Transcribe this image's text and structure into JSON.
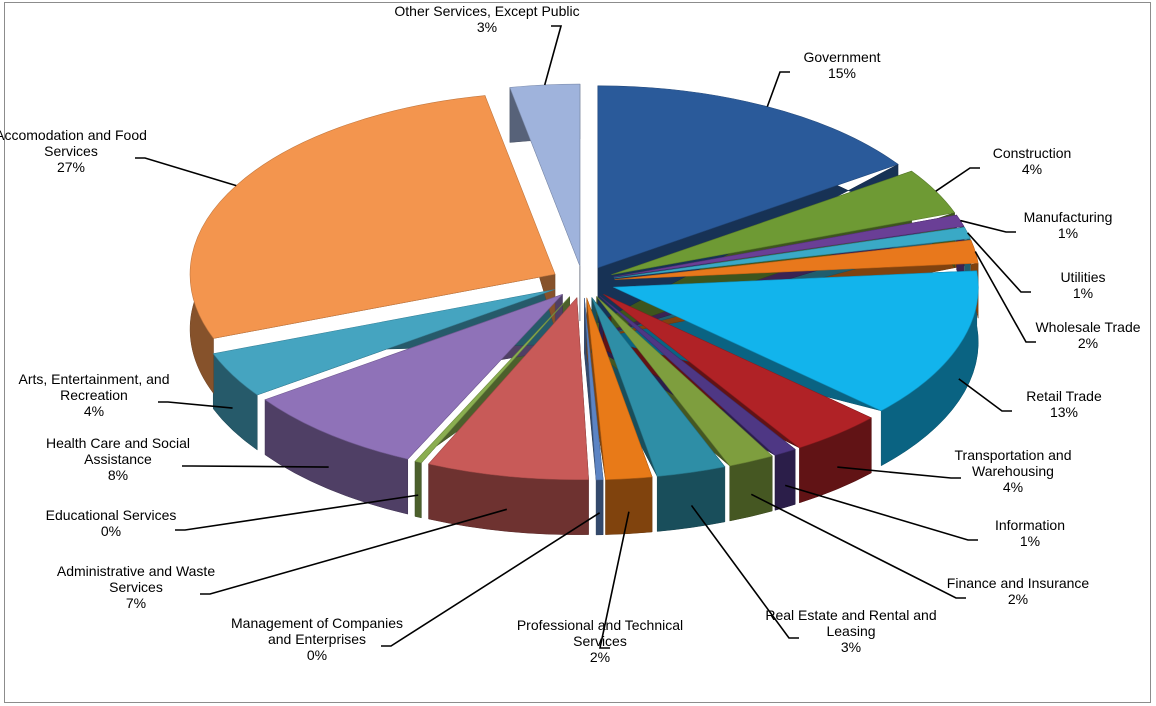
{
  "chart_data": {
    "type": "pie",
    "title": "",
    "legend": "none",
    "categories": [
      "Government",
      "Construction",
      "Manufacturing",
      "Utilities",
      "Wholesale Trade",
      "Retail Trade",
      "Transportation and Warehousing",
      "Information",
      "Finance and Insurance",
      "Real Estate and Rental and Leasing",
      "Professional and Technical Services",
      "Management of Companies and Enterprises",
      "Administrative and Waste Services",
      "Educational Services",
      "Health Care and Social Assistance",
      "Arts, Entertainment, and Recreation",
      "Accomodation and Food Services",
      "Other Services, Except Public"
    ],
    "values": [
      15,
      4,
      1,
      1,
      2,
      13,
      4,
      1,
      2,
      3,
      2,
      0,
      7,
      0,
      8,
      4,
      27,
      3
    ],
    "data_labels": [
      "15%",
      "4%",
      "1%",
      "1%",
      "2%",
      "13%",
      "4%",
      "1%",
      "2%",
      "3%",
      "2%",
      "0%",
      "7%",
      "0%",
      "8%",
      "4%",
      "27%",
      "3%"
    ],
    "label_lines": [
      [
        "Government"
      ],
      [
        "Construction"
      ],
      [
        "Manufacturing"
      ],
      [
        "Utilities"
      ],
      [
        "Wholesale Trade"
      ],
      [
        "Retail Trade"
      ],
      [
        "Transportation and",
        "Warehousing"
      ],
      [
        "Information"
      ],
      [
        "Finance and Insurance"
      ],
      [
        "Real Estate and Rental and",
        "Leasing"
      ],
      [
        "Professional and Technical",
        "Services"
      ],
      [
        "Management of Companies",
        "and Enterprises"
      ],
      [
        "Administrative and Waste",
        "Services"
      ],
      [
        "Educational Services"
      ],
      [
        "Health Care and Social",
        "Assistance"
      ],
      [
        "Arts, Entertainment, and",
        "Recreation"
      ],
      [
        "Accomodation and Food",
        "Services"
      ],
      [
        "Other Services, Except Public"
      ]
    ],
    "colors": [
      "#2a5a9a",
      "#6e9a34",
      "#6a3f96",
      "#3aa9c6",
      "#e8781c",
      "#12b4ec",
      "#b02226",
      "#4e3784",
      "#7e9e3e",
      "#2e8ea6",
      "#e87a18",
      "#5c84c4",
      "#c85a58",
      "#8aae50",
      "#8f72b8",
      "#45a4c0",
      "#f3954e",
      "#9fb3dc"
    ],
    "exploded": true,
    "style": "3d"
  }
}
